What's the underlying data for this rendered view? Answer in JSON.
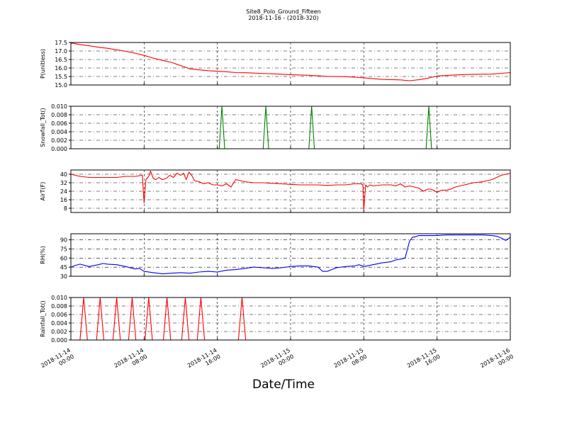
{
  "title": "Site8_Polo_Ground_Fifteen",
  "subtitle": "2018-11-16 - (2018-320)",
  "xlabel": "Date/Time",
  "colors": {
    "red": "#ff0000",
    "green": "#008000",
    "blue": "#0000ff"
  },
  "x_ticks": [
    {
      "t": 0,
      "line1": "2018-11-14",
      "line2": "00:00"
    },
    {
      "t": 8,
      "line1": "2018-11-14",
      "line2": "08:00"
    },
    {
      "t": 16,
      "line1": "2018-11-14",
      "line2": "16:00"
    },
    {
      "t": 24,
      "line1": "2018-11-15",
      "line2": "00:00"
    },
    {
      "t": 32,
      "line1": "2018-11-15",
      "line2": "08:00"
    },
    {
      "t": 40,
      "line1": "2018-11-15",
      "line2": "16:00"
    },
    {
      "t": 48,
      "line1": "2018-11-16",
      "line2": "00:00"
    }
  ],
  "chart_data": [
    {
      "type": "line",
      "ylabel": "P(unitless)",
      "color": "#ff0000",
      "ylim": [
        15.0,
        17.5
      ],
      "yticks": [
        15.0,
        15.5,
        16.0,
        16.5,
        17.0,
        17.5
      ],
      "ytick_labels": [
        "15.0",
        "15.5",
        "16.0",
        "16.5",
        "17.0",
        "17.5"
      ],
      "x_start": "2018-11-14 00:00",
      "x_hours": [
        0,
        1,
        2,
        3,
        4,
        5,
        6,
        7,
        8,
        9,
        10,
        11,
        12,
        13,
        14,
        15,
        16,
        17,
        18,
        19,
        20,
        22,
        24,
        26,
        28,
        30,
        32,
        34,
        36,
        37,
        38,
        39,
        40,
        41,
        42,
        44,
        46,
        48
      ],
      "values": [
        17.47,
        17.38,
        17.31,
        17.22,
        17.16,
        17.07,
        16.98,
        16.87,
        16.74,
        16.58,
        16.45,
        16.33,
        16.14,
        15.95,
        15.89,
        15.84,
        15.81,
        15.78,
        15.73,
        15.72,
        15.7,
        15.66,
        15.61,
        15.57,
        15.51,
        15.49,
        15.42,
        15.33,
        15.3,
        15.25,
        15.31,
        15.4,
        15.53,
        15.56,
        15.59,
        15.63,
        15.64,
        15.73
      ]
    },
    {
      "type": "line",
      "ylabel": "Snowfall_Tot()",
      "color": "#008000",
      "ylim": [
        0,
        0.01
      ],
      "yticks": [
        0,
        0.002,
        0.004,
        0.006,
        0.008,
        0.01
      ],
      "ytick_labels": [
        "0.000",
        "0.002",
        "0.004",
        "0.006",
        "0.008",
        "0.010"
      ],
      "x_start": "2018-11-14 00:00",
      "x_hours": [
        0,
        16.2,
        16.5,
        16.8,
        21.0,
        21.3,
        21.6,
        26.0,
        26.3,
        26.6,
        38.8,
        39.1,
        39.4,
        48
      ],
      "values": [
        0,
        0,
        0.01,
        0,
        0,
        0.01,
        0,
        0,
        0.01,
        0,
        0,
        0.01,
        0,
        0
      ]
    },
    {
      "type": "line",
      "ylabel": "AirT(F)",
      "color": "#ff0000",
      "ylim": [
        4,
        44
      ],
      "yticks": [
        8,
        16,
        24,
        32,
        40
      ],
      "ytick_labels": [
        "8",
        "16",
        "24",
        "32",
        "40"
      ],
      "x_start": "2018-11-14 00:00",
      "x_hours": [
        0,
        1,
        2,
        3,
        4,
        5,
        6,
        7,
        7.8,
        8.0,
        8.2,
        8.5,
        8.7,
        9.0,
        9.3,
        9.6,
        10.0,
        10.4,
        10.8,
        11.2,
        11.6,
        12.0,
        12.3,
        12.6,
        12.9,
        13.2,
        13.5,
        14.0,
        14.5,
        15.0,
        15.5,
        16.0,
        16.5,
        17.0,
        17.5,
        18.0,
        19,
        20,
        21,
        22,
        23,
        24,
        25,
        26,
        27,
        28,
        29,
        30,
        31,
        31.7,
        31.9,
        32.0,
        32.2,
        32.4,
        32.7,
        33,
        34,
        35,
        35.5,
        36,
        36.5,
        37,
        37.5,
        38,
        38.5,
        39,
        39.3,
        39.6,
        40,
        40.5,
        41,
        41.5,
        42,
        43,
        44,
        45,
        46,
        47,
        48
      ],
      "values": [
        40,
        38,
        37,
        37,
        37,
        37,
        38,
        38,
        39,
        13,
        35,
        38,
        43,
        36,
        35,
        37,
        35,
        36,
        39,
        37,
        41,
        39,
        41,
        35,
        42,
        39,
        34,
        33,
        31,
        32,
        30,
        30,
        29,
        31,
        28,
        35,
        33,
        32,
        32,
        31.5,
        31,
        30.5,
        30,
        30,
        30,
        29.5,
        30,
        30,
        31,
        31,
        30,
        6,
        30,
        28,
        30,
        29,
        30,
        30,
        29,
        31,
        28,
        29,
        28,
        27,
        24,
        26,
        26,
        25,
        23,
        25,
        25,
        26,
        28,
        30,
        32,
        33,
        35,
        39,
        41
      ]
    },
    {
      "type": "line",
      "ylabel": "RH(%)",
      "color": "#0000ff",
      "ylim": [
        30,
        100
      ],
      "yticks": [
        30,
        45,
        60,
        75,
        90
      ],
      "ytick_labels": [
        "30",
        "45",
        "60",
        "75",
        "90"
      ],
      "x_start": "2018-11-14 00:00",
      "x_hours": [
        0,
        0.5,
        1,
        2,
        3,
        3.5,
        4,
        5,
        6,
        7,
        7.5,
        8,
        9,
        10,
        11,
        12,
        13,
        14,
        15,
        16,
        17,
        18,
        19,
        20,
        21,
        22,
        23,
        24,
        25,
        26,
        27,
        27.5,
        28,
        29,
        30,
        31,
        31.5,
        32,
        33,
        34,
        35,
        35.5,
        36,
        36.5,
        37,
        37.3,
        37.6,
        38,
        39,
        40,
        41,
        42,
        43,
        44,
        45,
        46,
        46.5,
        47,
        47.5,
        48
      ],
      "values": [
        45,
        48,
        50,
        46,
        49,
        51,
        50,
        49,
        46,
        42,
        43,
        38,
        36,
        34,
        35,
        36,
        35,
        37,
        38,
        37,
        40,
        41,
        43,
        45,
        44,
        43,
        44,
        46,
        47,
        47,
        45,
        38,
        38,
        44,
        46,
        47,
        49,
        46,
        49,
        52,
        54,
        57,
        58,
        60,
        88,
        94,
        95,
        97,
        97,
        97,
        98,
        98,
        98,
        98,
        98,
        97,
        96,
        93,
        89,
        94
      ]
    },
    {
      "type": "line",
      "ylabel": "Rainfall_Tot()",
      "color": "#ff0000",
      "ylim": [
        0,
        0.01
      ],
      "yticks": [
        0,
        0.002,
        0.004,
        0.006,
        0.008,
        0.01
      ],
      "ytick_labels": [
        "0.000",
        "0.002",
        "0.004",
        "0.006",
        "0.008",
        "0.010"
      ],
      "x_start": "2018-11-14 00:00",
      "x_hours": [
        0,
        1.0,
        1.4,
        1.8,
        2.8,
        3.2,
        3.6,
        4.6,
        5.0,
        5.4,
        6.3,
        6.7,
        7.1,
        8.1,
        8.5,
        8.9,
        10.1,
        10.5,
        10.9,
        12.1,
        12.5,
        12.9,
        13.8,
        14.2,
        14.6,
        18.3,
        18.7,
        19.1,
        48
      ],
      "values": [
        0,
        0,
        0.01,
        0,
        0,
        0.01,
        0,
        0,
        0.01,
        0,
        0,
        0.01,
        0,
        0,
        0.01,
        0,
        0,
        0.01,
        0,
        0,
        0.01,
        0,
        0,
        0.01,
        0,
        0,
        0.01,
        0,
        0
      ]
    }
  ]
}
